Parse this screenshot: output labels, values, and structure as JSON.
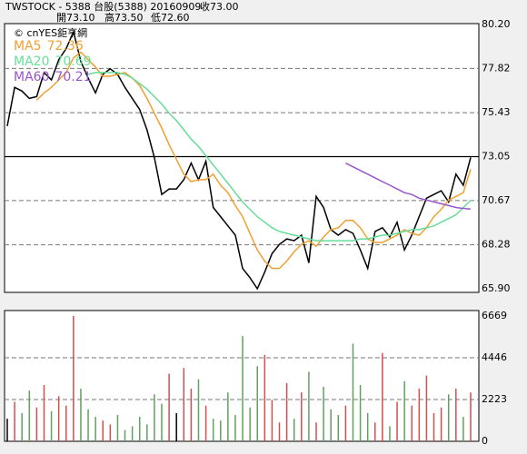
{
  "header": {
    "title": "TWSTOCK  - 5388  台股(5388) 20160909",
    "close": "收73.00",
    "open": "開73.10",
    "high": "高73.50",
    "low": "低72.60"
  },
  "chart_data": [
    {
      "type": "line",
      "source": "© cnYES鉅亨網",
      "ylim": [
        65.9,
        80.2
      ],
      "yticks": [
        {
          "value": 80.2,
          "label": "80.20"
        },
        77.82,
        75.43,
        73.05,
        70.67,
        68.28,
        {
          "value": 65.9,
          "label": "65.90"
        }
      ],
      "last_price_line": 73.05,
      "grid": true,
      "series": [
        {
          "color": "#000000",
          "values": [
            74.7,
            76.8,
            76.6,
            76.2,
            76.3,
            77.6,
            77.2,
            78.3,
            78.9,
            79.8,
            78.2,
            77.3,
            76.5,
            77.5,
            77.8,
            77.5,
            76.8,
            76.2,
            75.6,
            74.5,
            73.0,
            71.0,
            71.3,
            71.3,
            71.8,
            72.7,
            71.8,
            72.8,
            70.3,
            69.8,
            69.3,
            68.8,
            67.0,
            66.5,
            65.9,
            66.8,
            67.8,
            68.3,
            68.6,
            68.5,
            68.8,
            67.3,
            70.9,
            70.3,
            69.1,
            68.8,
            69.1,
            68.9,
            68.0,
            67.0,
            69.0,
            69.2,
            68.7,
            69.5,
            68.0,
            68.8,
            69.8,
            70.8,
            71.0,
            71.2,
            70.6,
            72.1,
            71.5,
            73.0
          ]
        },
        {
          "name": "MA5",
          "color": "#f0a030",
          "values": [
            null,
            null,
            null,
            null,
            76.1,
            76.5,
            76.8,
            77.2,
            77.6,
            78.4,
            78.7,
            78.3,
            77.9,
            77.4,
            77.4,
            77.5,
            77.6,
            77.3,
            76.9,
            76.2,
            75.4,
            74.6,
            73.7,
            72.9,
            72.1,
            71.7,
            71.8,
            71.8,
            72.1,
            71.5,
            71.1,
            70.4,
            69.8,
            68.9,
            68.0,
            67.4,
            67.0,
            67.0,
            67.4,
            67.9,
            68.3,
            68.5,
            68.2,
            68.7,
            69.1,
            69.2,
            69.6,
            69.6,
            69.2,
            68.6,
            68.4,
            68.4,
            68.6,
            68.8,
            69.1,
            68.9,
            68.8,
            69.2,
            69.8,
            70.2,
            70.7,
            70.9,
            71.1,
            72.36
          ]
        },
        {
          "name": "MA20",
          "color": "#66dd99",
          "values": [
            null,
            null,
            null,
            null,
            null,
            null,
            null,
            null,
            null,
            null,
            null,
            77.5,
            77.6,
            77.6,
            77.6,
            77.6,
            77.5,
            77.3,
            77.0,
            76.7,
            76.3,
            75.9,
            75.4,
            75.0,
            74.5,
            74.0,
            73.6,
            73.1,
            72.6,
            72.1,
            71.6,
            71.1,
            70.6,
            70.2,
            69.8,
            69.5,
            69.2,
            69.0,
            68.9,
            68.8,
            68.7,
            68.6,
            68.5,
            68.5,
            68.5,
            68.5,
            68.5,
            68.5,
            68.6,
            68.6,
            68.7,
            68.8,
            68.8,
            68.9,
            69.0,
            69.1,
            69.1,
            69.2,
            69.3,
            69.5,
            69.7,
            69.9,
            70.3,
            70.69
          ]
        },
        {
          "name": "MA60",
          "color": "#9955cc",
          "values": [
            null,
            null,
            null,
            null,
            null,
            null,
            null,
            null,
            null,
            null,
            null,
            null,
            null,
            null,
            null,
            null,
            null,
            null,
            null,
            null,
            null,
            null,
            null,
            null,
            null,
            null,
            null,
            null,
            null,
            null,
            null,
            null,
            null,
            null,
            null,
            null,
            null,
            null,
            null,
            null,
            null,
            null,
            null,
            null,
            null,
            null,
            72.7,
            72.5,
            72.3,
            72.1,
            71.9,
            71.7,
            71.5,
            71.3,
            71.1,
            71.0,
            70.8,
            70.7,
            70.6,
            70.5,
            70.4,
            70.3,
            70.25,
            70.21
          ]
        }
      ]
    },
    {
      "type": "bar",
      "ylim": [
        0,
        6669
      ],
      "yticks": [
        6669,
        4446,
        2223,
        0
      ],
      "grid": true,
      "up_color": "#d05050",
      "down_color": "#60a060",
      "flat_color": "#000000",
      "values": [
        1200,
        2100,
        1500,
        2700,
        1800,
        3000,
        1600,
        2400,
        1900,
        6669,
        2800,
        1700,
        1300,
        1100,
        900,
        1400,
        600,
        800,
        1300,
        900,
        2500,
        2000,
        3600,
        1500,
        3900,
        2800,
        3300,
        1900,
        1200,
        1100,
        2600,
        1400,
        5600,
        1800,
        4000,
        4600,
        2200,
        1000,
        3100,
        1200,
        2600,
        3700,
        1000,
        2900,
        1700,
        1400,
        1900,
        5200,
        3000,
        1500,
        1000,
        4700,
        800,
        2100,
        3200,
        1900,
        2800,
        3500,
        1500,
        1800,
        2500,
        2800,
        1300,
        2600
      ]
    }
  ]
}
